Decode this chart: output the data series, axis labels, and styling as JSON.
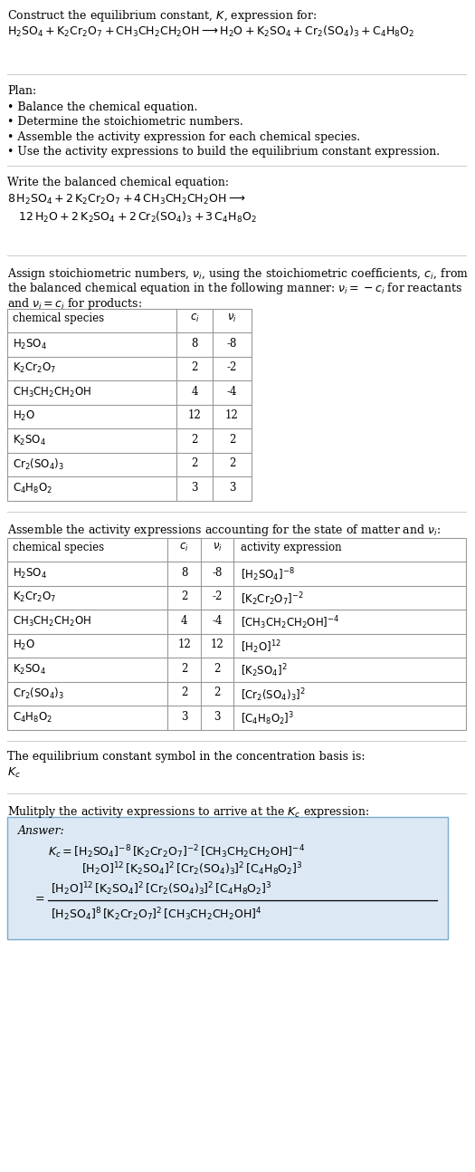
{
  "bg_color": "#ffffff",
  "text_color": "#000000",
  "table_border_color": "#999999",
  "answer_bg_color": "#dce9f5",
  "answer_border_color": "#7aabcf",
  "stoich_table_rows": [
    [
      "H_2SO_4",
      "8",
      "-8"
    ],
    [
      "K_2Cr_2O_7",
      "2",
      "-2"
    ],
    [
      "CH_3CH_2CH_2OH",
      "4",
      "-4"
    ],
    [
      "H_2O",
      "12",
      "12"
    ],
    [
      "K_2SO_4",
      "2",
      "2"
    ],
    [
      "Cr_2(SO_4)_3",
      "2",
      "2"
    ],
    [
      "C_4H_8O_2",
      "3",
      "3"
    ]
  ],
  "activity_table_rows": [
    [
      "H_2SO_4",
      "8",
      "-8",
      "[H_2SO_4]^{-8}"
    ],
    [
      "K_2Cr_2O_7",
      "2",
      "-2",
      "[K_2Cr_2O_7]^{-2}"
    ],
    [
      "CH_3CH_2CH_2OH",
      "4",
      "-4",
      "[CH_3CH_2CH_2OH]^{-4}"
    ],
    [
      "H_2O",
      "12",
      "12",
      "[H_2O]^{12}"
    ],
    [
      "K_2SO_4",
      "2",
      "2",
      "[K_2SO_4]^{2}"
    ],
    [
      "Cr_2(SO_4)_3",
      "2",
      "2",
      "[Cr_2(SO_4)_3]^{2}"
    ],
    [
      "C_4H_8O_2",
      "3",
      "3",
      "[C_4H_8O_2]^{3}"
    ]
  ]
}
